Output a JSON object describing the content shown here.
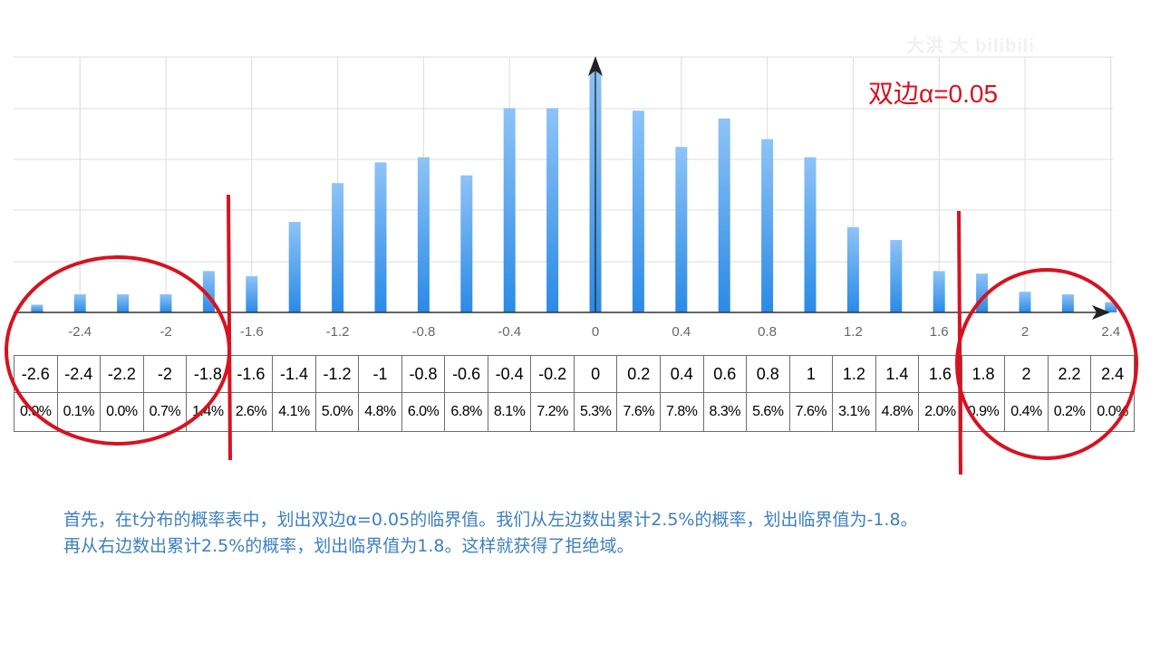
{
  "watermark": "大洪 大 bilibili",
  "alpha_label": "双边α=0.05",
  "caption": {
    "line1": "首先，在t分布的概率表中，划出双边α=0.05的临界值。我们从左边数出累计2.5%的概率，划出临界值为-1.8。",
    "line2": "再从右边数出累计2.5%的概率，划出临界值为1.8。这样就获得了拒绝域。"
  },
  "colors": {
    "bar_top": "#8ec3f6",
    "bar_bottom": "#2a8ae6",
    "annotation_red": "#d8121f",
    "caption_blue": "#3d7fc0",
    "grid": "#dcdcdc"
  },
  "chart_data": {
    "type": "bar",
    "title": "",
    "xlabel": "",
    "ylabel": "",
    "x_ticks": [
      "-2.4",
      "-2",
      "-1.6",
      "-1.2",
      "-0.8",
      "-0.4",
      "0",
      "0.4",
      "0.8",
      "1.2",
      "1.6",
      "2",
      "2.4"
    ],
    "x_tick_values": [
      -2.4,
      -2,
      -1.6,
      -1.2,
      -0.8,
      -0.4,
      0,
      0.4,
      0.8,
      1.2,
      1.6,
      2,
      2.4
    ],
    "xlim": [
      -2.7,
      2.5
    ],
    "ylim": [
      0,
      9
    ],
    "grid": true,
    "categories": [
      -2.6,
      -2.4,
      -2.2,
      -2.0,
      -1.8,
      -1.6,
      -1.4,
      -1.2,
      -1.0,
      -0.8,
      -0.6,
      -0.4,
      -0.2,
      0.0,
      0.2,
      0.4,
      0.6,
      0.8,
      1.0,
      1.2,
      1.4,
      1.6,
      1.8,
      2.0,
      2.2,
      2.4
    ],
    "values": [
      0.3,
      0.7,
      0.7,
      0.7,
      1.6,
      1.4,
      3.5,
      5.0,
      5.8,
      6.0,
      5.3,
      7.9,
      7.9,
      9.4,
      7.8,
      6.4,
      7.5,
      6.7,
      6.0,
      3.3,
      2.8,
      1.6,
      1.5,
      0.8,
      0.7,
      0.4
    ],
    "critical_values": [
      -1.8,
      1.8
    ],
    "table": {
      "x": [
        "-2.6",
        "-2.4",
        "-2.2",
        "-2",
        "-1.8",
        "-1.6",
        "-1.4",
        "-1.2",
        "-1",
        "-0.8",
        "-0.6",
        "-0.4",
        "-0.2",
        "0",
        "0.2",
        "0.4",
        "0.6",
        "0.8",
        "1",
        "1.2",
        "1.4",
        "1.6",
        "1.8",
        "2",
        "2.2",
        "2.4"
      ],
      "p": [
        "0.0%",
        "0.1%",
        "0.0%",
        "0.7%",
        "1.4%",
        "2.6%",
        "4.1%",
        "5.0%",
        "4.8%",
        "6.0%",
        "6.8%",
        "8.1%",
        "7.2%",
        "5.3%",
        "7.6%",
        "7.8%",
        "8.3%",
        "5.6%",
        "7.6%",
        "3.1%",
        "4.8%",
        "2.0%",
        "0.9%",
        "0.4%",
        "0.2%",
        "0.0%"
      ]
    }
  }
}
